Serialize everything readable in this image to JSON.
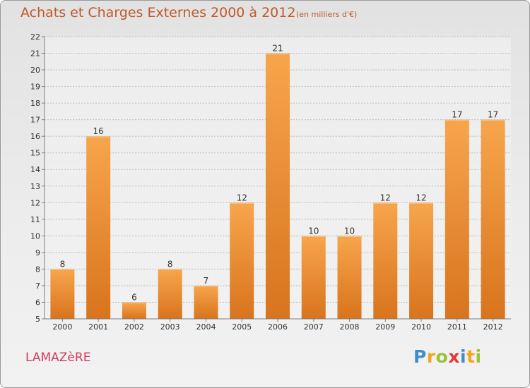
{
  "header": {
    "title": "Achats et Charges Externes 2000 à 2012",
    "unit": "(en milliers d'€)"
  },
  "footer": {
    "commune": "LAMAZèRE",
    "brand": {
      "letters": [
        "P",
        "r",
        "o",
        "x",
        "i",
        "t",
        "i"
      ],
      "colors": [
        "#3d8fcc",
        "#f2a51c",
        "#9cc23a",
        "#e23a3a",
        "#3d8fcc",
        "#f2a51c",
        "#9cc23a"
      ]
    }
  },
  "colors": {
    "bar_light": "#f7a54c",
    "bar_dark": "#d8741d",
    "grid": "#bcbcbc",
    "axis": "#808080",
    "text": "#333333"
  },
  "chart_data": {
    "type": "bar",
    "title": "Achats et Charges Externes 2000 à 2012",
    "categories": [
      "2000",
      "2001",
      "2002",
      "2003",
      "2004",
      "2005",
      "2006",
      "2007",
      "2008",
      "2009",
      "2010",
      "2011",
      "2012"
    ],
    "values": [
      8,
      16,
      6,
      8,
      7,
      12,
      21,
      10,
      10,
      12,
      12,
      17,
      17
    ],
    "data_labels": [
      "8",
      "16",
      "6",
      "8",
      "7",
      "12",
      "21",
      "10",
      "10",
      "12",
      "12",
      "17",
      "17"
    ],
    "yticks": [
      "5",
      "6",
      "7",
      "8",
      "9",
      "10",
      "11",
      "12",
      "13",
      "14",
      "15",
      "16",
      "17",
      "18",
      "19",
      "20",
      "21",
      "22"
    ],
    "ylim": [
      5,
      22
    ],
    "grid": true,
    "xlabel": "",
    "ylabel": ""
  }
}
